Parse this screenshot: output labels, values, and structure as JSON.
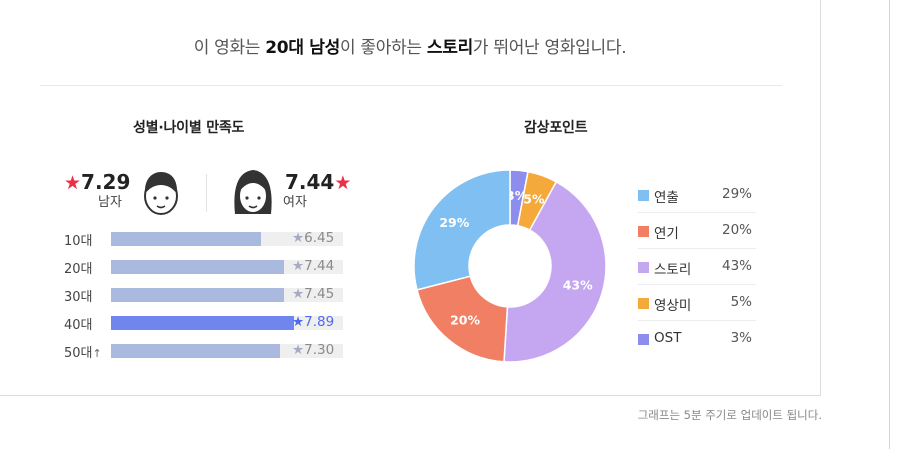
{
  "summary": {
    "prefix": "이 영화는 ",
    "demographic": "20대 남성",
    "middle": "이 좋아하는 ",
    "point": "스토리",
    "suffix": "가 뛰어난 영화입니다."
  },
  "satisfaction": {
    "title": "성별·나이별 만족도",
    "male": {
      "score": "7.29",
      "label": "남자",
      "icon": "male-face-icon"
    },
    "female": {
      "score": "7.44",
      "label": "여자",
      "icon": "female-face-icon"
    },
    "ages": [
      {
        "label": "10대",
        "score": "6.45",
        "value": 6.45,
        "highlight": false,
        "arrow": ""
      },
      {
        "label": "20대",
        "score": "7.44",
        "value": 7.44,
        "highlight": false,
        "arrow": ""
      },
      {
        "label": "30대",
        "score": "7.45",
        "value": 7.45,
        "highlight": false,
        "arrow": ""
      },
      {
        "label": "40대",
        "score": "7.89",
        "value": 7.89,
        "highlight": true,
        "arrow": ""
      },
      {
        "label": "50대",
        "score": "7.30",
        "value": 7.3,
        "highlight": false,
        "arrow": "↑"
      }
    ],
    "max": 10,
    "star": "★"
  },
  "points": {
    "title": "감상포인트",
    "legend": [
      {
        "name": "연출",
        "value": "29%"
      },
      {
        "name": "연기",
        "value": "20%"
      },
      {
        "name": "스토리",
        "value": "43%"
      },
      {
        "name": "영상미",
        "value": "5%"
      },
      {
        "name": "OST",
        "value": "3%"
      }
    ]
  },
  "colors": {
    "directing": "#7fbff2",
    "acting": "#f07f63",
    "story": "#c5a7f1",
    "visual": "#f5a93a",
    "ost": "#8c8ded",
    "bar": "#aab9de",
    "bar_highlight": "#6f86ee",
    "star_red": "#e9304a"
  },
  "chart_data": {
    "type": "pie",
    "categories": [
      "연출",
      "연기",
      "스토리",
      "영상미",
      "OST"
    ],
    "values": [
      29,
      20,
      43,
      5,
      3
    ],
    "labels": [
      "29%",
      "20%",
      "43%",
      "5%",
      "3%"
    ],
    "title": "감상포인트",
    "donut": true,
    "legend": "right"
  },
  "footnote": "그래프는 5분 주기로 업데이트 됩니다."
}
